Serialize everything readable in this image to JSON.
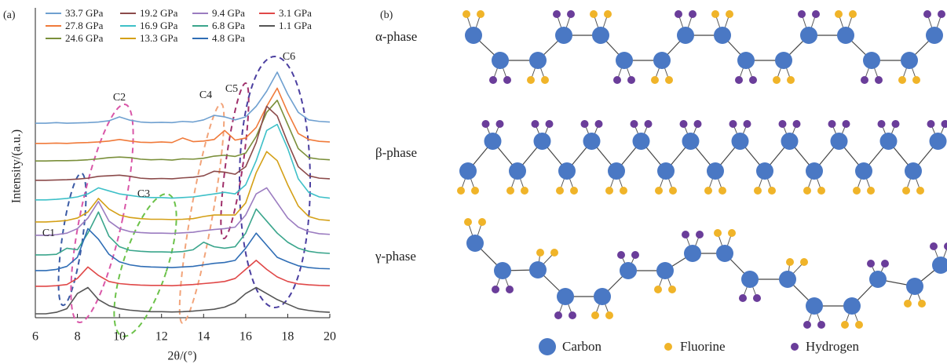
{
  "panel_labels": [
    "(a)",
    "(b)"
  ],
  "chart_data": {
    "type": "line",
    "xlabel": "2θ/(°)",
    "ylabel": "Intensity/(a.u.)",
    "xlim": [
      6,
      20
    ],
    "xticks": [
      6,
      8,
      10,
      12,
      14,
      16,
      18,
      20
    ],
    "ylim": [
      0,
      100
    ],
    "x": [
      6,
      6.5,
      7,
      7.5,
      8,
      8.5,
      9,
      9.5,
      10,
      10.5,
      11,
      11.5,
      12,
      12.5,
      13,
      13.5,
      14,
      14.5,
      15,
      15.5,
      16,
      16.5,
      17,
      17.5,
      18,
      18.5,
      19,
      19.5,
      20
    ],
    "series": [
      {
        "name": "33.7 GPa",
        "color": "#6fa0d0",
        "values": [
          64.4,
          64.4,
          64.6,
          64.4,
          64.5,
          64.6,
          64.8,
          65.2,
          66.5,
          65.4,
          64.8,
          64.6,
          64.7,
          64.6,
          65,
          64.8,
          65.5,
          67,
          66.5,
          65.5,
          66.5,
          70,
          75,
          81.3,
          74,
          68,
          65.5,
          65,
          64.8
        ]
      },
      {
        "name": "27.8 GPa",
        "color": "#f07a3a",
        "values": [
          57.7,
          57.7,
          57.8,
          57.7,
          57.9,
          58,
          58.2,
          58.5,
          59,
          58.5,
          58.1,
          58,
          58.2,
          58,
          59.5,
          58.3,
          58.5,
          59,
          62,
          58.8,
          59.5,
          63,
          70,
          76,
          68,
          61,
          59,
          58.4,
          58.2
        ]
      },
      {
        "name": "24.6 GPa",
        "color": "#7a8f3a",
        "values": [
          51.9,
          51.9,
          52,
          52,
          52.1,
          52.3,
          52.6,
          53,
          53.2,
          53,
          52.5,
          52.3,
          52.4,
          52.2,
          52.6,
          52.5,
          52.8,
          53.5,
          53.8,
          53.4,
          54.5,
          60,
          68,
          72,
          64,
          56,
          53,
          52.5,
          52.3
        ]
      },
      {
        "name": "19.2 GPa",
        "color": "#8b4a4a",
        "values": [
          45.5,
          45.5,
          45.6,
          45.7,
          45.9,
          46.2,
          46.8,
          47,
          47.2,
          46.8,
          46.2,
          46,
          46.1,
          46,
          46.3,
          46.5,
          47,
          48.5,
          48.2,
          47.5,
          50,
          58,
          70,
          66.8,
          58,
          50,
          47,
          46.2,
          46
        ]
      },
      {
        "name": "16.9 GPa",
        "color": "#3ec0c8",
        "values": [
          39,
          39,
          39.2,
          39.5,
          40,
          41,
          43,
          42,
          41,
          40.5,
          40,
          39.8,
          39.8,
          39.6,
          39.8,
          40,
          40.5,
          41,
          41.5,
          41,
          44,
          52,
          62,
          64,
          56,
          46,
          41.5,
          40,
          39.6
        ]
      },
      {
        "name": "13.3 GPa",
        "color": "#d4a017",
        "values": [
          31.7,
          31.7,
          31.9,
          32.2,
          33,
          35,
          39.5,
          36,
          34,
          33.2,
          32.8,
          32.6,
          32.6,
          32.5,
          32.6,
          32.8,
          33.5,
          34,
          34,
          34,
          38,
          48,
          55,
          52,
          44,
          37,
          33.5,
          32.5,
          32.2
        ]
      },
      {
        "name": "9.4 GPa",
        "color": "#9b7cc0",
        "values": [
          27.3,
          27.3,
          27.5,
          28,
          29.5,
          33,
          38.5,
          32,
          29.5,
          28.5,
          28.2,
          28,
          28,
          27.9,
          28.1,
          28.3,
          28.8,
          29.2,
          29.5,
          30,
          34,
          41,
          43,
          38,
          33,
          30,
          28.5,
          27.8,
          27.6
        ]
      },
      {
        "name": "6.8 GPa",
        "color": "#3aa58c",
        "values": [
          20.8,
          20.8,
          21,
          23,
          22.5,
          28,
          35,
          27,
          23.5,
          22.3,
          22,
          21.8,
          21.8,
          21.7,
          21.9,
          22.5,
          25,
          23.5,
          23,
          23.5,
          28,
          36,
          32,
          28,
          25,
          23,
          22,
          21.5,
          21.3
        ]
      },
      {
        "name": "4.8 GPa",
        "color": "#2f6db5",
        "values": [
          15.6,
          15.6,
          16,
          17,
          20,
          29.5,
          26,
          21,
          18.5,
          17.5,
          17,
          16.8,
          16.7,
          16.6,
          16.8,
          17,
          17.5,
          18,
          18.3,
          19,
          23,
          28,
          24,
          20,
          18.5,
          17.2,
          16.6,
          16.3,
          16.2
        ]
      },
      {
        "name": "3.1 GPa",
        "color": "#e04848",
        "values": [
          10.4,
          10.4,
          10.6,
          11,
          13,
          16.8,
          14,
          12,
          11.3,
          11,
          10.8,
          10.7,
          10.7,
          10.6,
          10.8,
          11,
          11.3,
          11.6,
          12,
          13,
          16,
          19,
          16,
          13.5,
          12,
          11.2,
          10.9,
          10.7,
          10.6
        ]
      },
      {
        "name": "1.1 GPa",
        "color": "#555555",
        "values": [
          1.3,
          1.3,
          1.8,
          3,
          8,
          10,
          6,
          4,
          3,
          2.5,
          2.2,
          2,
          2,
          1.9,
          2,
          2.2,
          2.5,
          2.8,
          3.5,
          5,
          8,
          10,
          8,
          6,
          4.5,
          3,
          2.4,
          2,
          1.8
        ]
      }
    ],
    "annotations": [
      {
        "text": "C1",
        "color": "#3b5ba5"
      },
      {
        "text": "C2",
        "color": "#d957a8"
      },
      {
        "text": "C3",
        "color": "#6cc24a"
      },
      {
        "text": "C4",
        "color": "#f2a47a"
      },
      {
        "text": "C5",
        "color": "#a0306b"
      },
      {
        "text": "C6",
        "color": "#4b3fa0"
      }
    ]
  },
  "diagram": {
    "phases": [
      "α-phase",
      "β-phase",
      "γ-phase"
    ],
    "legend": [
      "Carbon",
      "Fluorine",
      "Hydrogen"
    ]
  }
}
